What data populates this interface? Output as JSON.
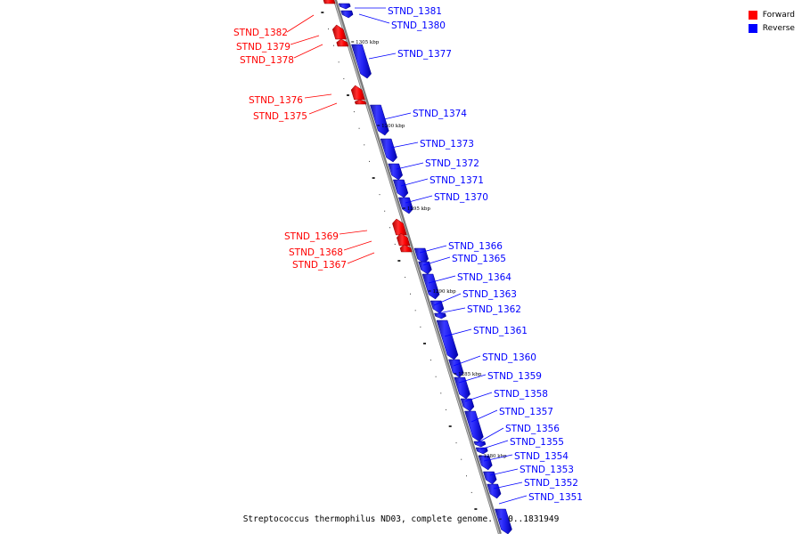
{
  "legend": {
    "forward_label": "Forward",
    "reverse_label": "Reverse",
    "forward_color": "#ff0000",
    "reverse_color": "#0000ff"
  },
  "caption": "Streptococcus thermophilus ND03, complete genome. - 0..1831949",
  "kbp_marks": [
    "1305 kbp",
    "1300 kbp",
    "1295 kbp",
    "1290 kbp",
    "1285 kbp",
    "1280 kbp"
  ],
  "genes": [
    {
      "name": "STND_1382",
      "strand": "forward"
    },
    {
      "name": "STND_1381",
      "strand": "reverse"
    },
    {
      "name": "STND_1380",
      "strand": "reverse"
    },
    {
      "name": "STND_1379",
      "strand": "forward"
    },
    {
      "name": "STND_1378",
      "strand": "forward"
    },
    {
      "name": "STND_1377",
      "strand": "reverse"
    },
    {
      "name": "STND_1376",
      "strand": "forward"
    },
    {
      "name": "STND_1375",
      "strand": "forward"
    },
    {
      "name": "STND_1374",
      "strand": "reverse"
    },
    {
      "name": "STND_1373",
      "strand": "reverse"
    },
    {
      "name": "STND_1372",
      "strand": "reverse"
    },
    {
      "name": "STND_1371",
      "strand": "reverse"
    },
    {
      "name": "STND_1370",
      "strand": "reverse"
    },
    {
      "name": "STND_1369",
      "strand": "forward"
    },
    {
      "name": "STND_1368",
      "strand": "forward"
    },
    {
      "name": "STND_1367",
      "strand": "forward"
    },
    {
      "name": "STND_1366",
      "strand": "reverse"
    },
    {
      "name": "STND_1365",
      "strand": "reverse"
    },
    {
      "name": "STND_1364",
      "strand": "reverse"
    },
    {
      "name": "STND_1363",
      "strand": "reverse"
    },
    {
      "name": "STND_1362",
      "strand": "reverse"
    },
    {
      "name": "STND_1361",
      "strand": "reverse"
    },
    {
      "name": "STND_1360",
      "strand": "reverse"
    },
    {
      "name": "STND_1359",
      "strand": "reverse"
    },
    {
      "name": "STND_1358",
      "strand": "reverse"
    },
    {
      "name": "STND_1357",
      "strand": "reverse"
    },
    {
      "name": "STND_1356",
      "strand": "reverse"
    },
    {
      "name": "STND_1355",
      "strand": "reverse"
    },
    {
      "name": "STND_1354",
      "strand": "reverse"
    },
    {
      "name": "STND_1353",
      "strand": "reverse"
    },
    {
      "name": "STND_1352",
      "strand": "reverse"
    },
    {
      "name": "STND_1351",
      "strand": "reverse"
    }
  ]
}
